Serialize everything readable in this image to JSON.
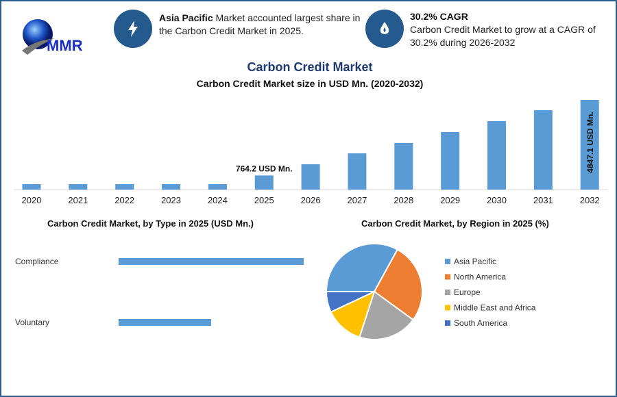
{
  "logo": {
    "text": "MMR"
  },
  "highlights": [
    {
      "icon": "lightning-icon",
      "bold": "Asia Pacific",
      "text": " Market accounted largest share in the Carbon Credit Market in 2025."
    },
    {
      "icon": "flame-drop-icon",
      "bold": "30.2% CAGR",
      "text": "Carbon Credit Market to grow at a CAGR of 30.2% during 2026-2032"
    }
  ],
  "colors": {
    "accent": "#245a8d",
    "bar": "#5b9bd5",
    "title": "#1f3a6e"
  },
  "chart_data": [
    {
      "type": "bar",
      "title": "Carbon Credit Market",
      "subtitle": "Carbon Credit Market size in USD Mn. (2020-2032)",
      "categories": [
        "2020",
        "2021",
        "2022",
        "2023",
        "2024",
        "2025",
        "2026",
        "2027",
        "2028",
        "2029",
        "2030",
        "2031",
        "2032"
      ],
      "values": [
        296,
        296,
        296,
        296,
        296,
        764.2,
        1370,
        1960,
        2520,
        3110,
        3700,
        4290,
        4847.1
      ],
      "annotations": [
        {
          "category": "2025",
          "label": "764.2 USD Mn."
        },
        {
          "category": "2032",
          "label": "4847.1 USD Mn."
        }
      ],
      "ylim": [
        0,
        4847.1
      ],
      "grid": false
    },
    {
      "type": "bar",
      "orientation": "horizontal",
      "title": "Carbon Credit Market, by Type in 2025 (USD Mn.)",
      "categories": [
        "Compliance",
        "Voluntary"
      ],
      "values": [
        509.5,
        254.7
      ]
    },
    {
      "type": "pie",
      "title": "Carbon Credit Market, by Region in 2025 (%)",
      "labels": [
        "Asia Pacific",
        "North America",
        "Europe",
        "Middle East and Africa",
        "South America"
      ],
      "values": [
        33,
        27,
        20,
        13,
        7
      ],
      "colors": [
        "#5b9bd5",
        "#ed7d31",
        "#a5a5a5",
        "#ffc000",
        "#4472c4"
      ],
      "legend": "right"
    }
  ]
}
